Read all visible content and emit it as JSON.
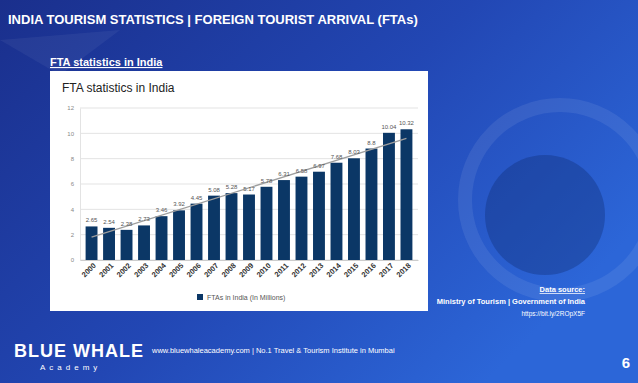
{
  "slide": {
    "header": "INDIA TOURISM STATISTICS | FOREIGN TOURIST ARRIVAL (FTAs)",
    "subheading": "FTA statistics in India",
    "source_label": "Data source:",
    "source_text": "Ministry of Tourism | Government of India",
    "source_url": "https://bit.ly/2ROpX5F",
    "brand": "BLUE WHALE",
    "brand_sub": "Academy",
    "footer_text": "www.bluewhaleacademy.com | No.1 Travel & Tourism Institute in Mumbai",
    "page_number": 6
  },
  "chart_data": {
    "type": "bar",
    "title": "FTA statistics in India",
    "categories": [
      "2000",
      "2001",
      "2002",
      "2003",
      "2004",
      "2005",
      "2006",
      "2007",
      "2008",
      "2009",
      "2010",
      "2011",
      "2012",
      "2013",
      "2014",
      "2015",
      "2016",
      "2017",
      "2018"
    ],
    "series": [
      {
        "name": "FTAs in India (In Millions)",
        "color": "#0b3766",
        "values": [
          2.65,
          2.54,
          2.38,
          2.73,
          3.46,
          3.92,
          4.45,
          5.08,
          5.28,
          5.17,
          5.78,
          6.31,
          6.58,
          6.97,
          7.68,
          8.03,
          8.8,
          10.04,
          10.32
        ]
      }
    ],
    "trendline": {
      "x": [
        "2000",
        "2018"
      ],
      "values": [
        1.8,
        9.6
      ],
      "color": "#9e9e9e"
    },
    "ylim": [
      0,
      12
    ],
    "yticks": [
      0,
      2,
      4,
      6,
      8,
      10,
      12
    ],
    "grid": true,
    "data_labels": true,
    "legend": "bottom"
  }
}
